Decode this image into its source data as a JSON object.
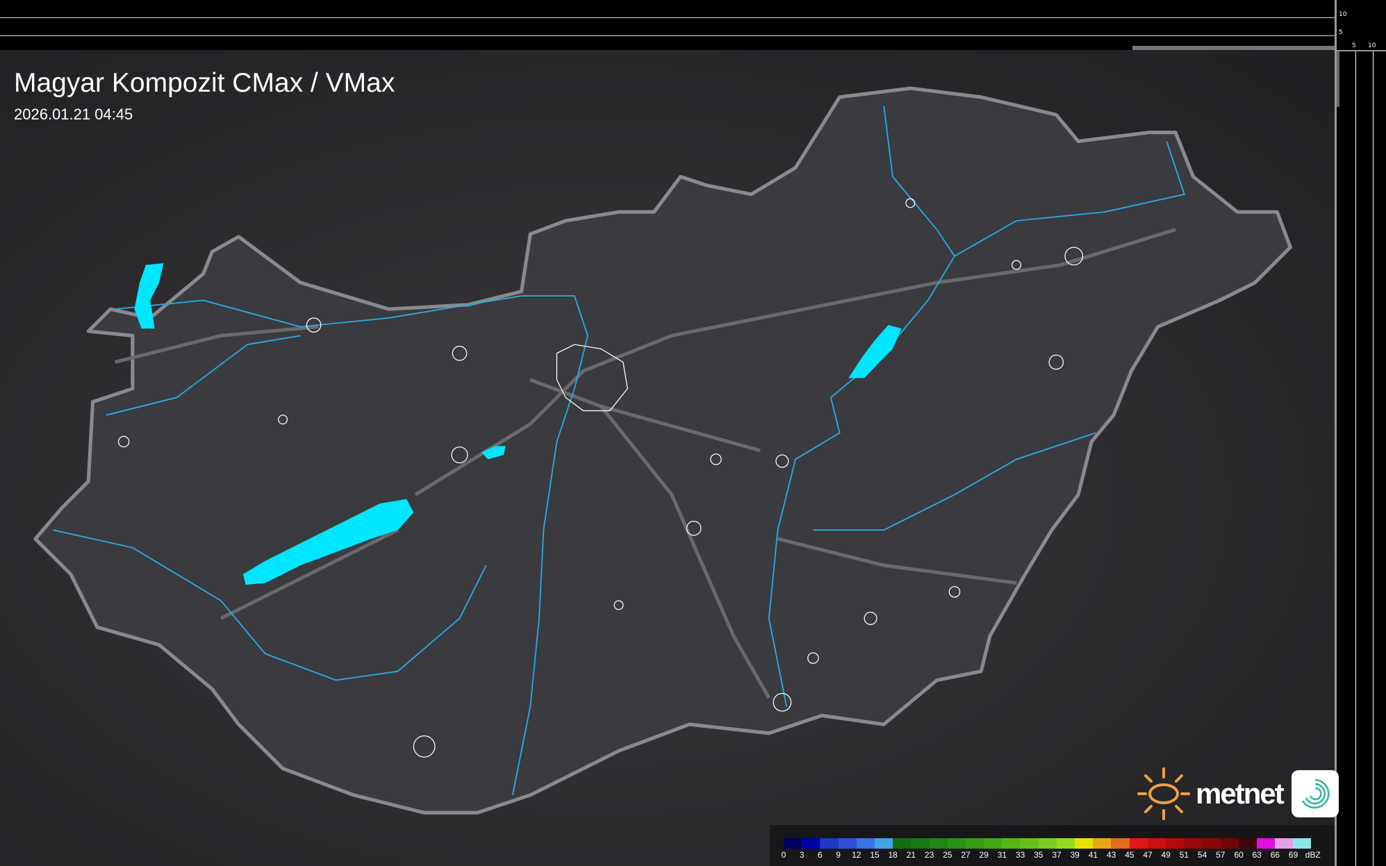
{
  "title": "Magyar Kompozit CMax / VMax",
  "timestamp": "2026.01.21 04:45",
  "side_axis": {
    "top_labels": [
      "10",
      "5"
    ],
    "right_labels": [
      "5",
      "10"
    ]
  },
  "logo": {
    "brand": "metnet",
    "icons": [
      "sun-icon",
      "swirl-app-icon"
    ]
  },
  "legend": {
    "unit": "dBZ",
    "labels": [
      "0",
      "3",
      "6",
      "9",
      "12",
      "15",
      "18",
      "21",
      "23",
      "25",
      "27",
      "29",
      "31",
      "33",
      "35",
      "37",
      "39",
      "41",
      "43",
      "45",
      "47",
      "49",
      "51",
      "54",
      "57",
      "60",
      "63",
      "66",
      "69"
    ],
    "colors": [
      "#00005e",
      "#0000a8",
      "#1f36c8",
      "#2f4fd6",
      "#3a72e0",
      "#44a4e8",
      "#106c10",
      "#187812",
      "#208616",
      "#2a9218",
      "#369c18",
      "#44a818",
      "#56b418",
      "#68c01a",
      "#7ecc1e",
      "#96da20",
      "#e6e200",
      "#e8a812",
      "#e06c18",
      "#e01818",
      "#cc1010",
      "#b40a0a",
      "#9c0808",
      "#860808",
      "#6c0606",
      "#3e0606",
      "#e010e0",
      "#e6a0e6",
      "#8ee6e6"
    ]
  },
  "map": {
    "border_color": "#8a8a8e",
    "river_color": "#2aa8d8",
    "lake_color": "#00e6ff",
    "city_outline_color": "#ffffff"
  }
}
